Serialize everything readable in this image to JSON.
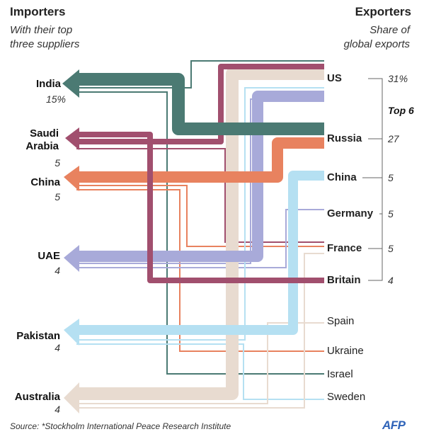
{
  "header": {
    "left_title": "Importers",
    "left_subtitle_1": "With their top",
    "left_subtitle_2": "three suppliers",
    "right_title": "Exporters",
    "right_subtitle_1": "Share of",
    "right_subtitle_2": "global exports"
  },
  "importers": [
    {
      "name_1": "India",
      "name_2": "",
      "value": "15%"
    },
    {
      "name_1": "Saudi",
      "name_2": "Arabia",
      "value": "5"
    },
    {
      "name_1": "China",
      "name_2": "",
      "value": "5"
    },
    {
      "name_1": "UAE",
      "name_2": "",
      "value": "4"
    },
    {
      "name_1": "Pakistan",
      "name_2": "",
      "value": "4"
    },
    {
      "name_1": "Australia",
      "name_2": "",
      "value": "4"
    }
  ],
  "exporters": [
    {
      "name": "US",
      "value": "31%"
    },
    {
      "name": "Russia",
      "value": "27"
    },
    {
      "name": "China",
      "value": "5"
    },
    {
      "name": "Germany",
      "value": "5"
    },
    {
      "name": "France",
      "value": "5"
    },
    {
      "name": "Britain",
      "value": "4"
    },
    {
      "name": "Spain",
      "value": ""
    },
    {
      "name": "Ukraine",
      "value": ""
    },
    {
      "name": "Israel",
      "value": ""
    },
    {
      "name": "Sweden",
      "value": ""
    }
  ],
  "top_group_label": "Top 6",
  "source": "Source: *Stockholm International Peace Research Institute",
  "logo": "AFP",
  "colors": {
    "russia": "#4b7a73",
    "us": "#a14f6e",
    "france": "#e8825f",
    "china_exp": "#b5e0f2",
    "germany": "#a8aad9",
    "britain": "#a14f6e",
    "spain": "#e8dbd0",
    "ukraine": "#e8825f",
    "israel": "#4b7a73",
    "sweden": "#b5e0f2"
  }
}
